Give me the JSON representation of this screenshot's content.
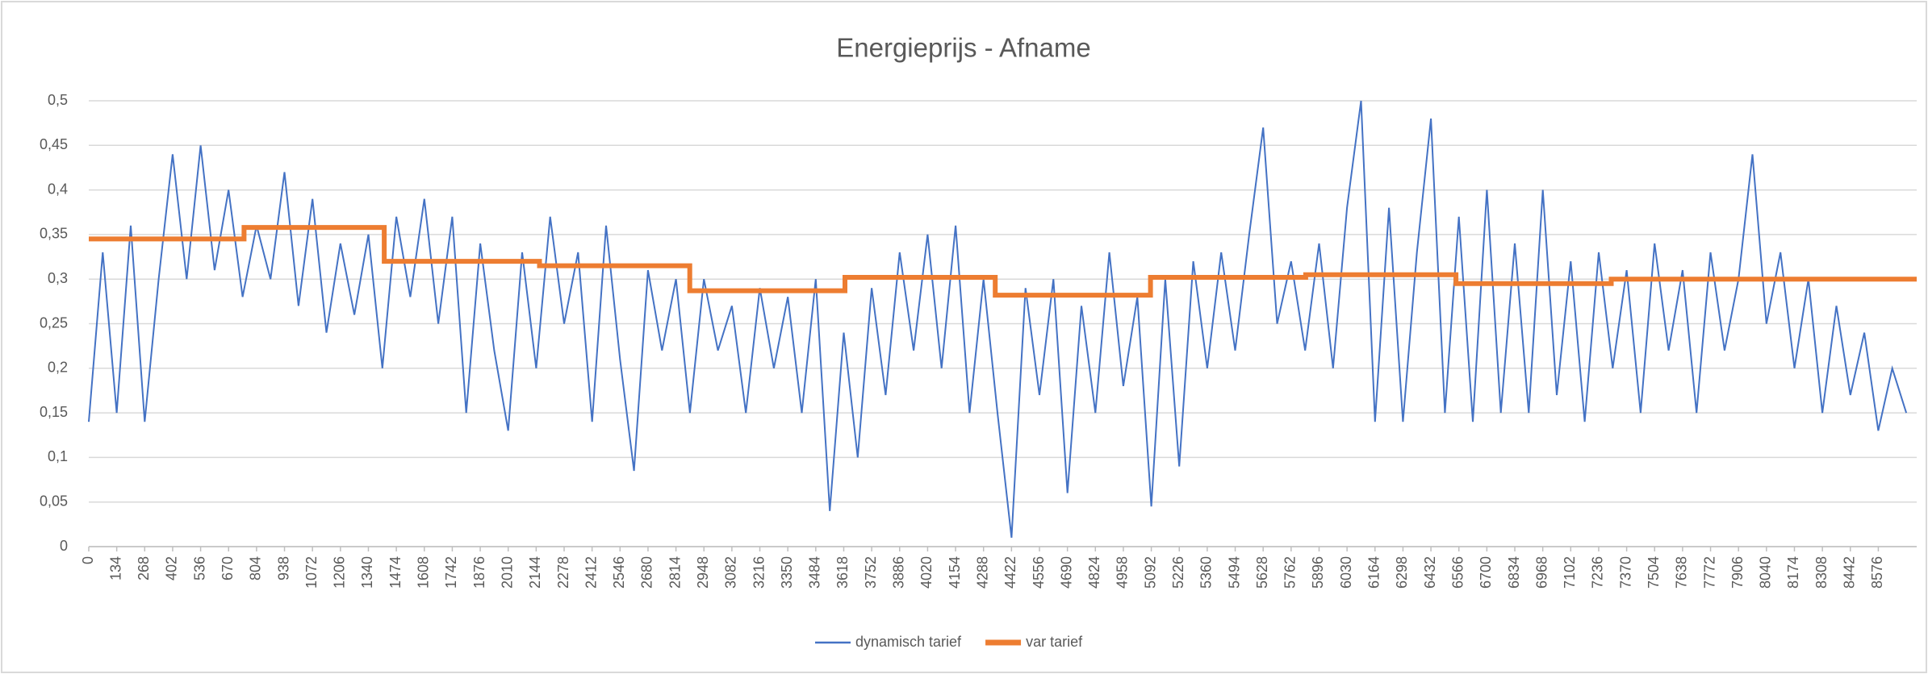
{
  "chart_data": {
    "type": "line",
    "title": "Energieprijs - Afname",
    "xlim": [
      0,
      8760
    ],
    "xticks": [
      0,
      134,
      268,
      402,
      536,
      670,
      804,
      938,
      1072,
      1206,
      1340,
      1474,
      1608,
      1742,
      1876,
      2010,
      2144,
      2278,
      2412,
      2546,
      2680,
      2814,
      2948,
      3082,
      3216,
      3350,
      3484,
      3618,
      3752,
      3886,
      4020,
      4154,
      4288,
      4422,
      4556,
      4690,
      4824,
      4958,
      5092,
      5226,
      5360,
      5494,
      5628,
      5762,
      5896,
      6030,
      6164,
      6298,
      6432,
      6566,
      6700,
      6834,
      6968,
      7102,
      7236,
      7370,
      7504,
      7638,
      7772,
      7906,
      8040,
      8174,
      8308,
      8442,
      8576
    ],
    "ylim": [
      0,
      0.5
    ],
    "yticks": [
      0,
      {
        "value": 0.05,
        "label": "0,05"
      },
      {
        "value": 0.1,
        "label": "0,1"
      },
      {
        "value": 0.15,
        "label": "0,15"
      },
      {
        "value": 0.2,
        "label": "0,2"
      },
      {
        "value": 0.25,
        "label": "0,25"
      },
      {
        "value": 0.3,
        "label": "0,3"
      },
      {
        "value": 0.35,
        "label": "0,35"
      },
      {
        "value": 0.4,
        "label": "0,4"
      },
      {
        "value": 0.45,
        "label": "0,45"
      },
      {
        "value": 0.5,
        "label": "0,5"
      }
    ],
    "grid": true,
    "legend": "bottom",
    "series": [
      {
        "name": "dynamisch tarief",
        "color": "#4472c4",
        "x": [
          0,
          67,
          134,
          201,
          268,
          335,
          402,
          469,
          536,
          603,
          670,
          737,
          804,
          871,
          938,
          1005,
          1072,
          1139,
          1206,
          1273,
          1340,
          1407,
          1474,
          1541,
          1608,
          1675,
          1742,
          1809,
          1876,
          1943,
          2010,
          2077,
          2144,
          2211,
          2278,
          2345,
          2412,
          2479,
          2546,
          2613,
          2680,
          2747,
          2814,
          2881,
          2948,
          3015,
          3082,
          3149,
          3216,
          3283,
          3350,
          3417,
          3484,
          3551,
          3618,
          3685,
          3752,
          3819,
          3886,
          3953,
          4020,
          4087,
          4154,
          4221,
          4288,
          4355,
          4422,
          4489,
          4556,
          4623,
          4690,
          4757,
          4824,
          4891,
          4958,
          5025,
          5092,
          5159,
          5226,
          5293,
          5360,
          5427,
          5494,
          5561,
          5628,
          5695,
          5762,
          5829,
          5896,
          5963,
          6030,
          6097,
          6164,
          6231,
          6298,
          6365,
          6432,
          6499,
          6566,
          6633,
          6700,
          6767,
          6834,
          6901,
          6968,
          7035,
          7102,
          7169,
          7236,
          7303,
          7370,
          7437,
          7504,
          7571,
          7638,
          7705,
          7772,
          7839,
          7906,
          7973,
          8040,
          8107,
          8174,
          8241,
          8308,
          8375,
          8442,
          8509,
          8576,
          8643,
          8710
        ],
        "values": [
          0.14,
          0.33,
          0.15,
          0.36,
          0.14,
          0.3,
          0.44,
          0.3,
          0.45,
          0.31,
          0.4,
          0.28,
          0.36,
          0.3,
          0.42,
          0.27,
          0.39,
          0.24,
          0.34,
          0.26,
          0.35,
          0.2,
          0.37,
          0.28,
          0.39,
          0.25,
          0.37,
          0.15,
          0.34,
          0.22,
          0.13,
          0.33,
          0.2,
          0.37,
          0.25,
          0.33,
          0.14,
          0.36,
          0.21,
          0.085,
          0.31,
          0.22,
          0.3,
          0.15,
          0.3,
          0.22,
          0.27,
          0.15,
          0.29,
          0.2,
          0.28,
          0.15,
          0.3,
          0.04,
          0.24,
          0.1,
          0.29,
          0.17,
          0.33,
          0.22,
          0.35,
          0.2,
          0.36,
          0.15,
          0.3,
          0.15,
          0.01,
          0.29,
          0.17,
          0.3,
          0.06,
          0.27,
          0.15,
          0.33,
          0.18,
          0.28,
          0.045,
          0.3,
          0.09,
          0.32,
          0.2,
          0.33,
          0.22,
          0.35,
          0.47,
          0.25,
          0.32,
          0.22,
          0.34,
          0.2,
          0.38,
          0.5,
          0.14,
          0.38,
          0.14,
          0.33,
          0.48,
          0.15,
          0.37,
          0.14,
          0.4,
          0.15,
          0.34,
          0.15,
          0.4,
          0.17,
          0.32,
          0.14,
          0.33,
          0.2,
          0.31,
          0.15,
          0.34,
          0.22,
          0.31,
          0.15,
          0.33,
          0.22,
          0.3,
          0.44,
          0.25,
          0.33,
          0.2,
          0.3,
          0.15,
          0.27,
          0.17,
          0.24,
          0.13,
          0.2,
          0.15
        ]
      },
      {
        "name": "var tarief",
        "color": "#ed7d31",
        "x": [
          0,
          744,
          744,
          1416,
          1416,
          2160,
          2160,
          2880,
          2880,
          3624,
          3624,
          4344,
          4344,
          5088,
          5088,
          5832,
          5832,
          6552,
          6552,
          7296,
          7296,
          8760
        ],
        "values": [
          0.345,
          0.345,
          0.358,
          0.358,
          0.32,
          0.32,
          0.315,
          0.315,
          0.287,
          0.287,
          0.302,
          0.302,
          0.282,
          0.282,
          0.302,
          0.302,
          0.305,
          0.305,
          0.295,
          0.295,
          0.3,
          0.3
        ]
      }
    ]
  }
}
